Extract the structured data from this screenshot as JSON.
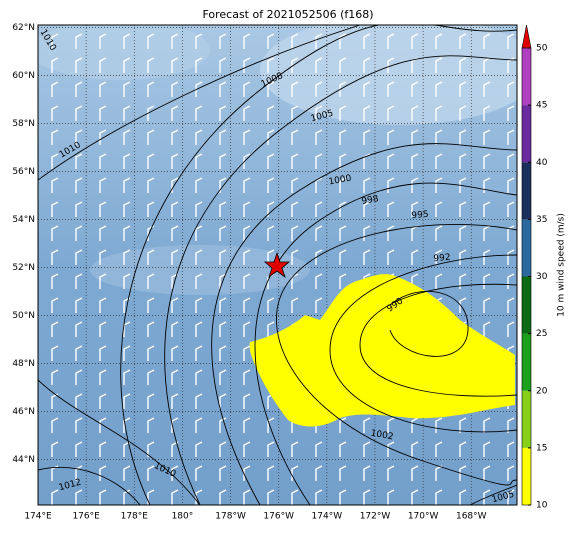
{
  "chart_data": {
    "type": "map",
    "title": "Forecast of 2021052506 (f168)",
    "ylim": [
      42.1,
      62.1
    ],
    "yticks": [
      {
        "value": 44,
        "label": "44°N"
      },
      {
        "value": 46,
        "label": "46°N"
      },
      {
        "value": 48,
        "label": "48°N"
      },
      {
        "value": 50,
        "label": "50°N"
      },
      {
        "value": 52,
        "label": "52°N"
      },
      {
        "value": 54,
        "label": "54°N"
      },
      {
        "value": 56,
        "label": "56°N"
      },
      {
        "value": 58,
        "label": "58°N"
      },
      {
        "value": 60,
        "label": "60°N"
      },
      {
        "value": 62,
        "label": "62°N"
      }
    ],
    "xlim": [
      174,
      193.9
    ],
    "xticks": [
      {
        "value": 174,
        "label": "174°E"
      },
      {
        "value": 176,
        "label": "176°E"
      },
      {
        "value": 178,
        "label": "178°E"
      },
      {
        "value": 180,
        "label": "180°"
      },
      {
        "value": 182,
        "label": "178°W"
      },
      {
        "value": 184,
        "label": "176°W"
      },
      {
        "value": 186,
        "label": "174°W"
      },
      {
        "value": 188,
        "label": "172°W"
      },
      {
        "value": 190,
        "label": "170°W"
      },
      {
        "value": 192,
        "label": "168°W"
      }
    ],
    "grid": true,
    "contour_labels": [
      "1010",
      "1008",
      "1005",
      "1010",
      "1000",
      "998",
      "995",
      "992",
      "990",
      "1002",
      "1010",
      "1012",
      "1005"
    ],
    "colorbar": {
      "label": "10 m wind speed (m/s)",
      "lim": [
        10,
        50
      ],
      "ticks": [
        10,
        15,
        20,
        25,
        30,
        35,
        40,
        45,
        50
      ],
      "colors": [
        "#ffff00",
        "#88d018",
        "#1aa01a",
        "#0a6b14",
        "#2a6aa0",
        "#1c2e5c",
        "#6a2aa0",
        "#b040c0"
      ],
      "extend_color": "#e00000"
    }
  }
}
